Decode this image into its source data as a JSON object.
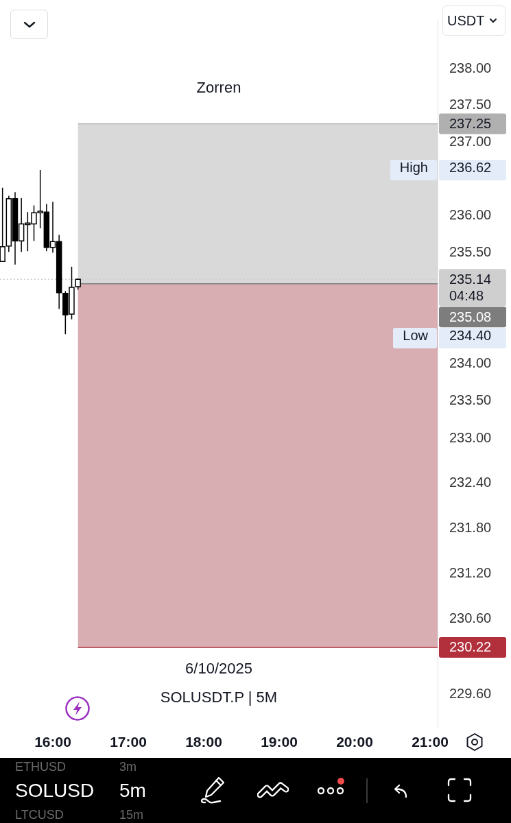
{
  "chart_data": [
    {
      "type": "candlestick",
      "subtitle": "Zorren",
      "ylabel": "USDT",
      "log": true,
      "grid": false,
      "x": [
        15.3333,
        15.4167,
        15.5,
        15.5833,
        15.6667,
        15.75,
        15.8333,
        15.9167,
        16,
        16.0833,
        16.1667,
        16.25,
        16.3333
      ],
      "ohlc": [
        [
          235.38,
          236.38,
          235.38,
          235.58
        ],
        [
          235.59,
          236.27,
          235.51,
          236.23
        ],
        [
          236.23,
          236.32,
          235.34,
          235.66
        ],
        [
          235.66,
          236.24,
          235.51,
          235.89
        ],
        [
          235.88,
          236.05,
          235.52,
          235.9
        ],
        [
          235.89,
          236.14,
          235.66,
          236.04
        ],
        [
          236.04,
          236.62,
          235.83,
          236.06
        ],
        [
          236.05,
          236.16,
          235.52,
          235.57
        ],
        [
          235.57,
          236.19,
          235.5,
          235.65
        ],
        [
          235.65,
          235.74,
          234.74,
          234.96
        ],
        [
          234.95,
          234.98,
          234.4,
          234.66
        ],
        [
          234.67,
          235.31,
          234.6,
          235.03
        ],
        [
          235.04,
          235.15,
          235,
          235.14
        ]
      ],
      "colors": [
        "#ffffff",
        "#ffffff",
        "#000000",
        "#ffffff",
        "#ffffff",
        "#ffffff",
        "#ffffff",
        "#000000",
        "#ffffff",
        "#000000",
        "#000000",
        "#ffffff",
        "#ffffff"
      ],
      "xlim": [
        15.3,
        21.1
      ],
      "xticks": [
        {
          "value": 16,
          "label": "16:00"
        },
        {
          "value": 17,
          "label": "17:00"
        },
        {
          "value": 18,
          "label": "18:00"
        },
        {
          "value": 19,
          "label": "19:00"
        },
        {
          "value": 20,
          "label": "20:00"
        },
        {
          "value": 21,
          "label": "21:00"
        }
      ],
      "ylim": [
        229.17,
        238.67
      ],
      "yticks": [
        {
          "value": 238,
          "label": "238.00"
        },
        {
          "value": 237.5,
          "label": "237.50"
        },
        {
          "value": 237,
          "label": "237.00"
        },
        {
          "value": 236,
          "label": "236.00"
        },
        {
          "value": 235.5,
          "label": "235.50"
        },
        {
          "value": 234,
          "label": "234.00"
        },
        {
          "value": 233.5,
          "label": "233.50"
        },
        {
          "value": 233,
          "label": "233.00"
        },
        {
          "value": 232.4,
          "label": "232.40"
        },
        {
          "value": 231.8,
          "label": "231.80"
        },
        {
          "value": 231.2,
          "label": "231.20"
        },
        {
          "value": 230.6,
          "label": "230.60"
        },
        {
          "value": 229.6,
          "label": "229.60"
        }
      ],
      "bands": [
        {
          "axis": "y",
          "from": 235.08,
          "to": 237.25,
          "color": "#d9d9d9"
        },
        {
          "axis": "y",
          "from": 230.22,
          "to": 235.08,
          "color": "#d8aeb3"
        }
      ],
      "ref_lines": [
        {
          "axis": "y",
          "value": 237.25,
          "label": "237.25",
          "color": "#b0b0b0"
        },
        {
          "axis": "y",
          "value": 235.14,
          "label": "235.14\n04:48",
          "color": "#cfcfcf",
          "line_style": "dotted"
        },
        {
          "axis": "y",
          "value": 235.08,
          "label": "235.08",
          "color": "#7d7d7d"
        },
        {
          "axis": "y",
          "value": 230.22,
          "label": "230.22",
          "color": "#b22f3c"
        }
      ],
      "annotations": [
        "6/10/2025",
        "SOLUSDT.P | 5M",
        "High 236.62",
        "Low 234.40"
      ]
    },
    {
      "type": "other",
      "annotations": [
        "ETHUSD",
        "3m",
        "SOLUSD",
        "5m",
        "LTCUSD",
        "15m"
      ]
    }
  ]
}
